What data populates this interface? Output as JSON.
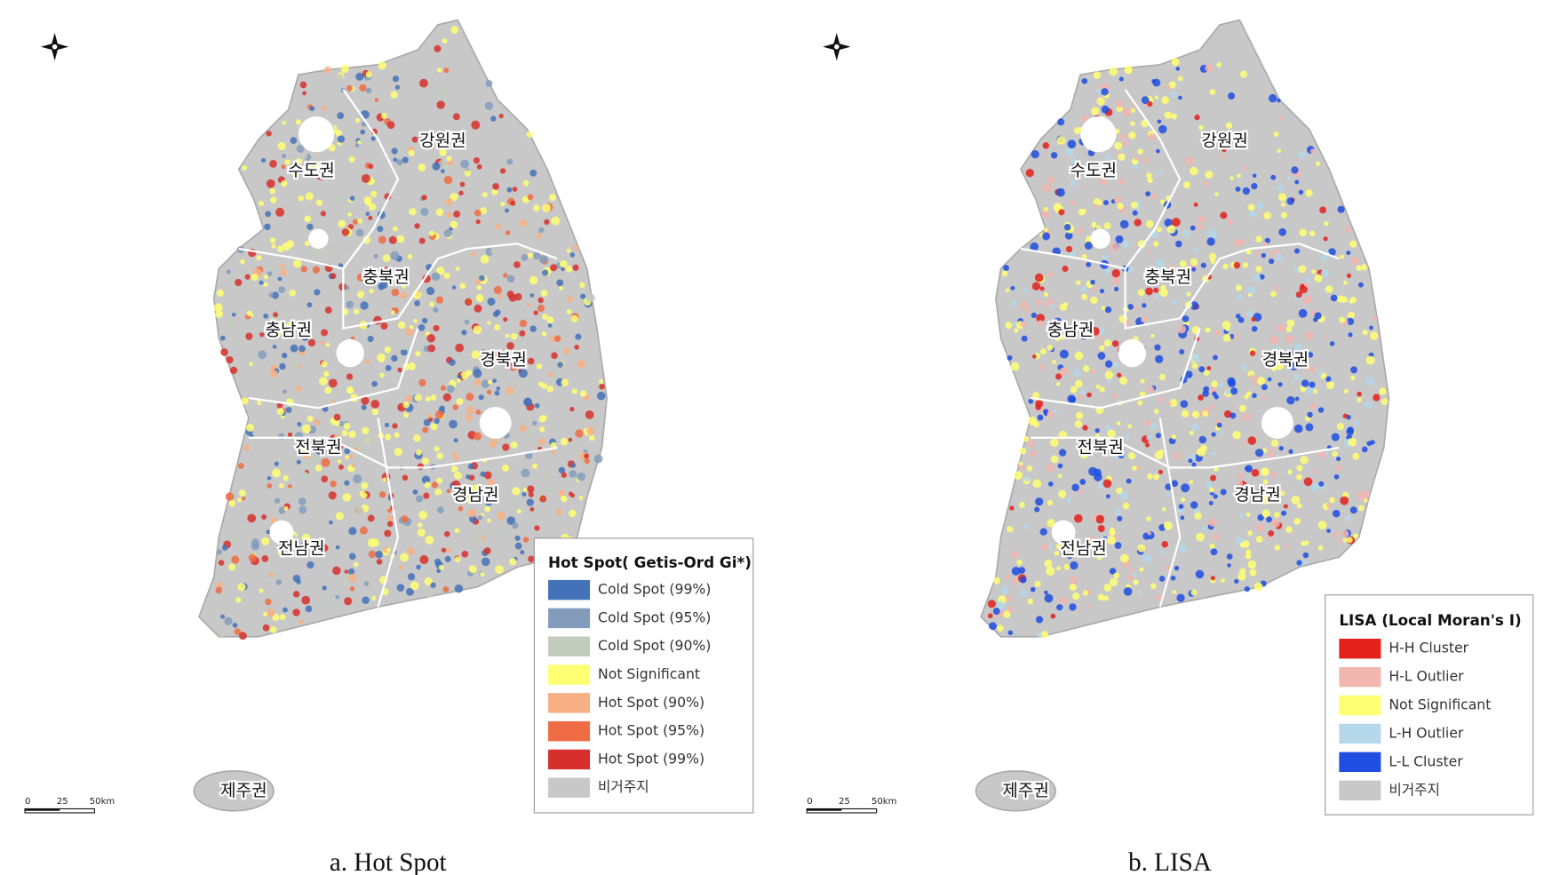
{
  "panels": [
    {
      "regions": [
        "수도권",
        "강원권",
        "충북권",
        "충남권",
        "경북권",
        "전북권",
        "경남권",
        "전남권",
        "제주권"
      ],
      "legend": {
        "title": "Hot Spot( Getis-Ord Gi*)",
        "items": [
          {
            "label": "Cold Spot (99%)",
            "color": "#4472b8"
          },
          {
            "label": "Cold Spot (95%)",
            "color": "#849cbc"
          },
          {
            "label": "Cold Spot (90%)",
            "color": "#c2ccbc"
          },
          {
            "label": "Not Significant",
            "color": "#ffff73"
          },
          {
            "label": "Hot Spot (90%)",
            "color": "#f7b084"
          },
          {
            "label": "Hot Spot (95%)",
            "color": "#ef6c44"
          },
          {
            "label": "Hot Spot (99%)",
            "color": "#d7302c"
          },
          {
            "label": "비거주지",
            "color": "#c8c8c8"
          }
        ]
      },
      "scale": [
        "0",
        "25",
        "50km"
      ],
      "caption": "a.  Hot Spot"
    },
    {
      "regions": [
        "수도권",
        "강원권",
        "충북권",
        "충남권",
        "경북권",
        "전북권",
        "경남권",
        "전남권",
        "제주권"
      ],
      "legend": {
        "title": "LISA (Local Moran's I)",
        "items": [
          {
            "label": "H-H Cluster",
            "color": "#e3201c"
          },
          {
            "label": "H-L Outlier",
            "color": "#f1b6ae"
          },
          {
            "label": "Not Significant",
            "color": "#ffff73"
          },
          {
            "label": "L-H Outlier",
            "color": "#b4d8ea"
          },
          {
            "label": "L-L Cluster",
            "color": "#1f4ee0"
          },
          {
            "label": "비거주지",
            "color": "#c8c8c8"
          }
        ]
      },
      "scale": [
        "0",
        "25",
        "50km"
      ],
      "caption": "b.  LISA"
    }
  ]
}
